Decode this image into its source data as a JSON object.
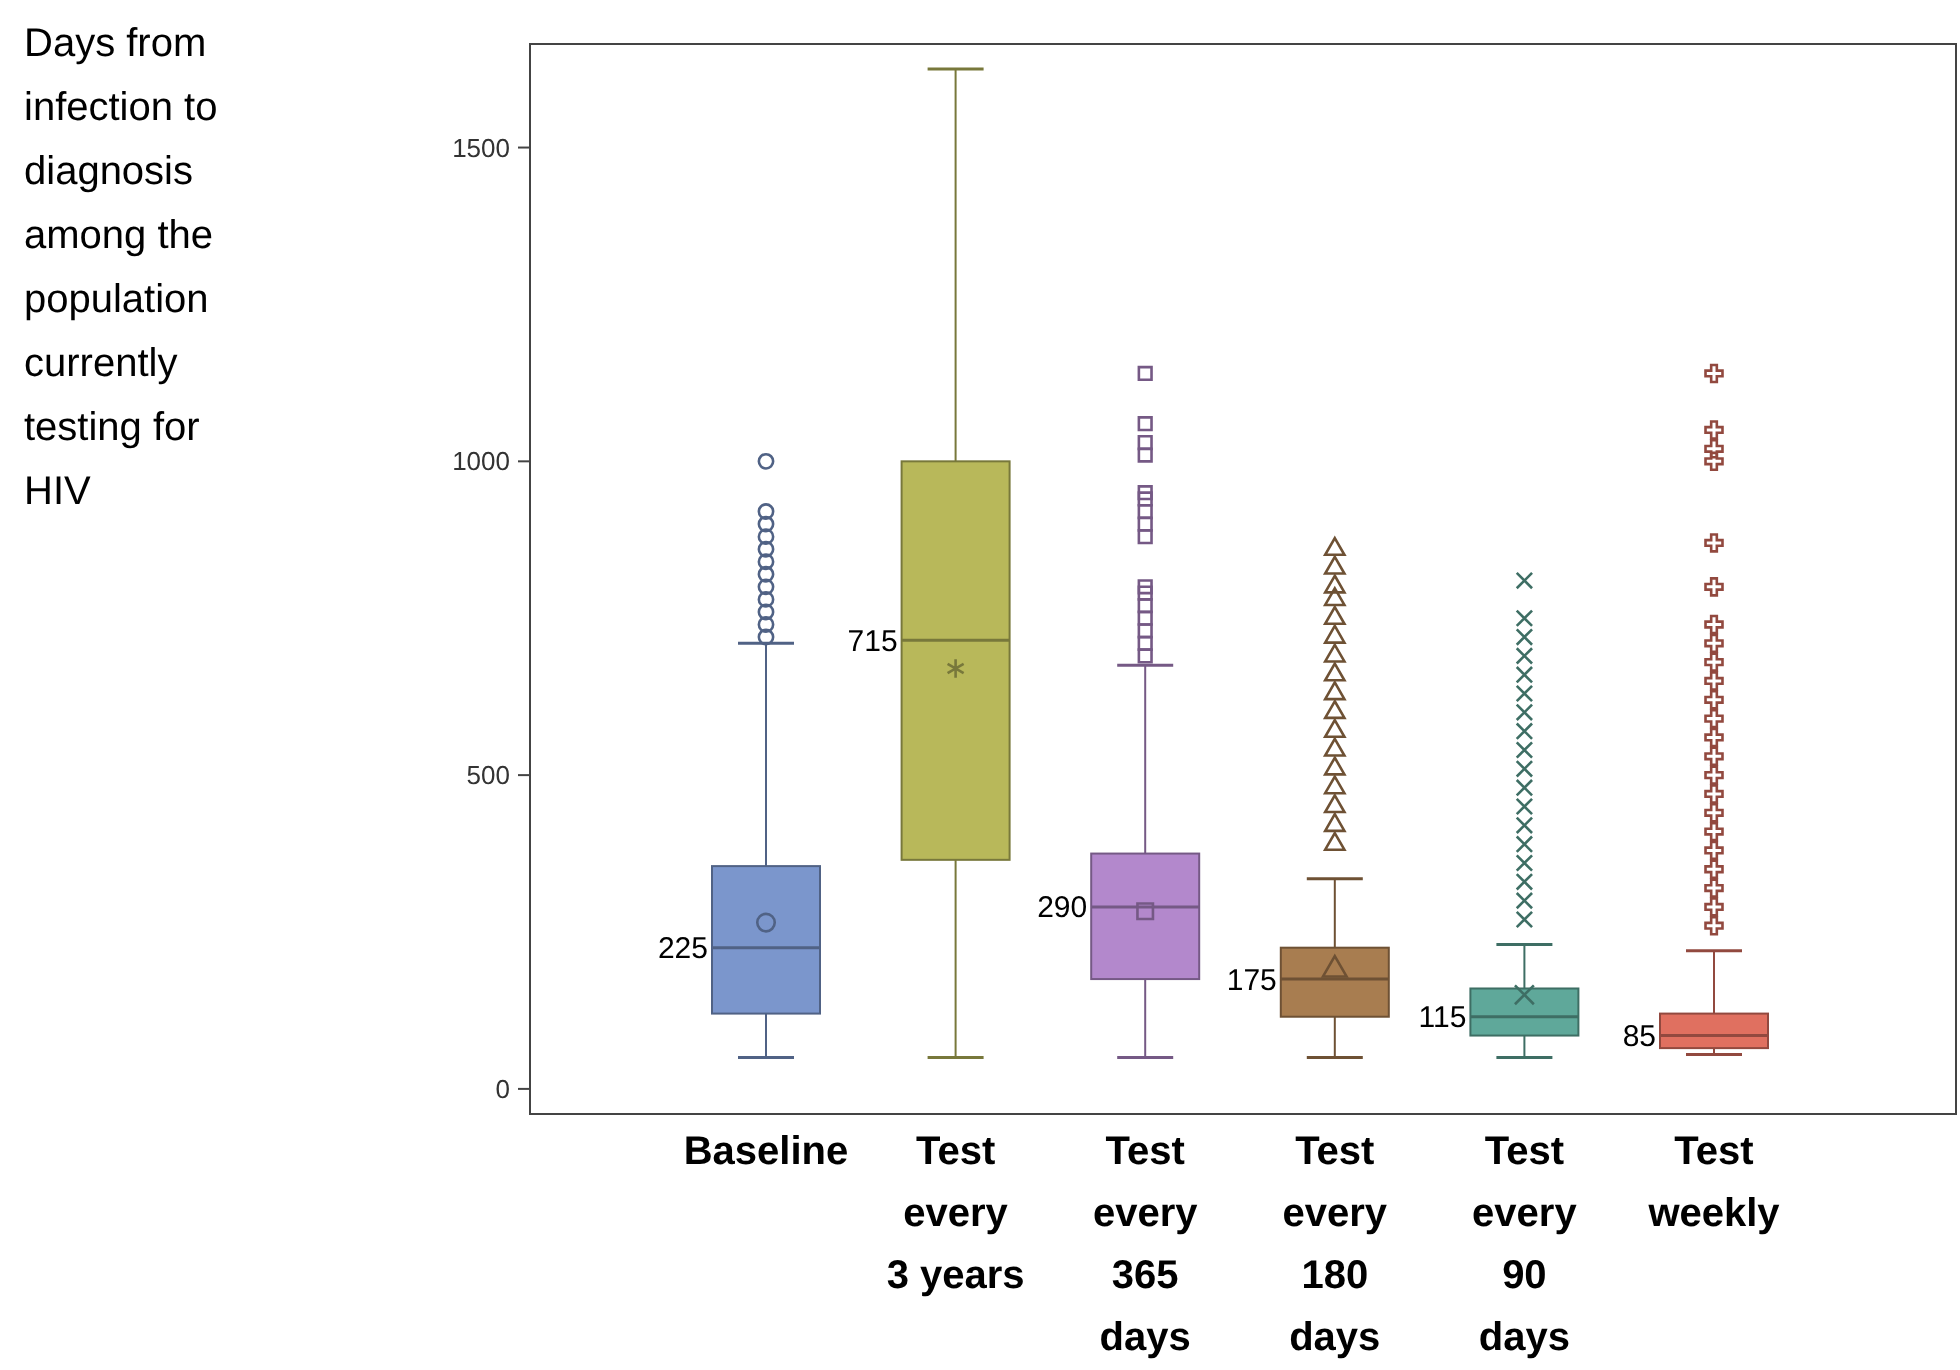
{
  "chart_data": {
    "type": "box",
    "title": "Days from infection to diagnosis among the population currently testing for HIV",
    "categories": [
      "Baseline",
      "Test\nevery\n3 years",
      "Test\nevery\n365\ndays",
      "Test\nevery\n180\ndays",
      "Test\nevery\n90\ndays",
      "Test\nweekly"
    ],
    "value_labels": [
      "225",
      "715",
      "290",
      "175",
      "115",
      "85"
    ],
    "colors": [
      "#7b96cc",
      "#b8b85a",
      "#b388cc",
      "#a87d50",
      "#5fa89a",
      "#e07060"
    ],
    "boxes": [
      {
        "low": 50,
        "q1": 120,
        "median": 225,
        "q3": 355,
        "high": 710,
        "mean": 265,
        "outliers": [
          720,
          740,
          760,
          780,
          800,
          820,
          840,
          860,
          880,
          900,
          920,
          1000
        ]
      },
      {
        "low": 50,
        "q1": 365,
        "median": 715,
        "q3": 1000,
        "high": 1625,
        "mean": 670
      },
      {
        "low": 50,
        "q1": 175,
        "median": 290,
        "q3": 375,
        "high": 675,
        "mean": 283,
        "outliers": [
          690,
          710,
          730,
          750,
          770,
          790,
          800,
          880,
          900,
          920,
          940,
          950,
          1010,
          1030,
          1060,
          1140
        ]
      },
      {
        "low": 50,
        "q1": 115,
        "median": 175,
        "q3": 225,
        "high": 335,
        "mean": 190,
        "outliers": [
          390,
          420,
          450,
          480,
          510,
          540,
          570,
          600,
          630,
          660,
          690,
          720,
          750,
          780,
          800,
          830,
          860
        ]
      },
      {
        "low": 50,
        "q1": 85,
        "median": 115,
        "q3": 160,
        "high": 230,
        "mean": 150,
        "outliers": [
          270,
          300,
          330,
          360,
          390,
          420,
          450,
          480,
          510,
          540,
          570,
          600,
          630,
          660,
          690,
          720,
          750,
          810
        ]
      },
      {
        "low": 55,
        "q1": 65,
        "median": 85,
        "q3": 120,
        "high": 220,
        "outliers": [
          260,
          290,
          320,
          350,
          380,
          410,
          440,
          470,
          500,
          530,
          560,
          590,
          620,
          650,
          680,
          710,
          740,
          800,
          870,
          1000,
          1020,
          1050,
          1140
        ]
      }
    ],
    "ylim": [
      -40,
      1665
    ],
    "yticks": [
      0,
      500,
      1000,
      1500
    ],
    "grid": false
  }
}
